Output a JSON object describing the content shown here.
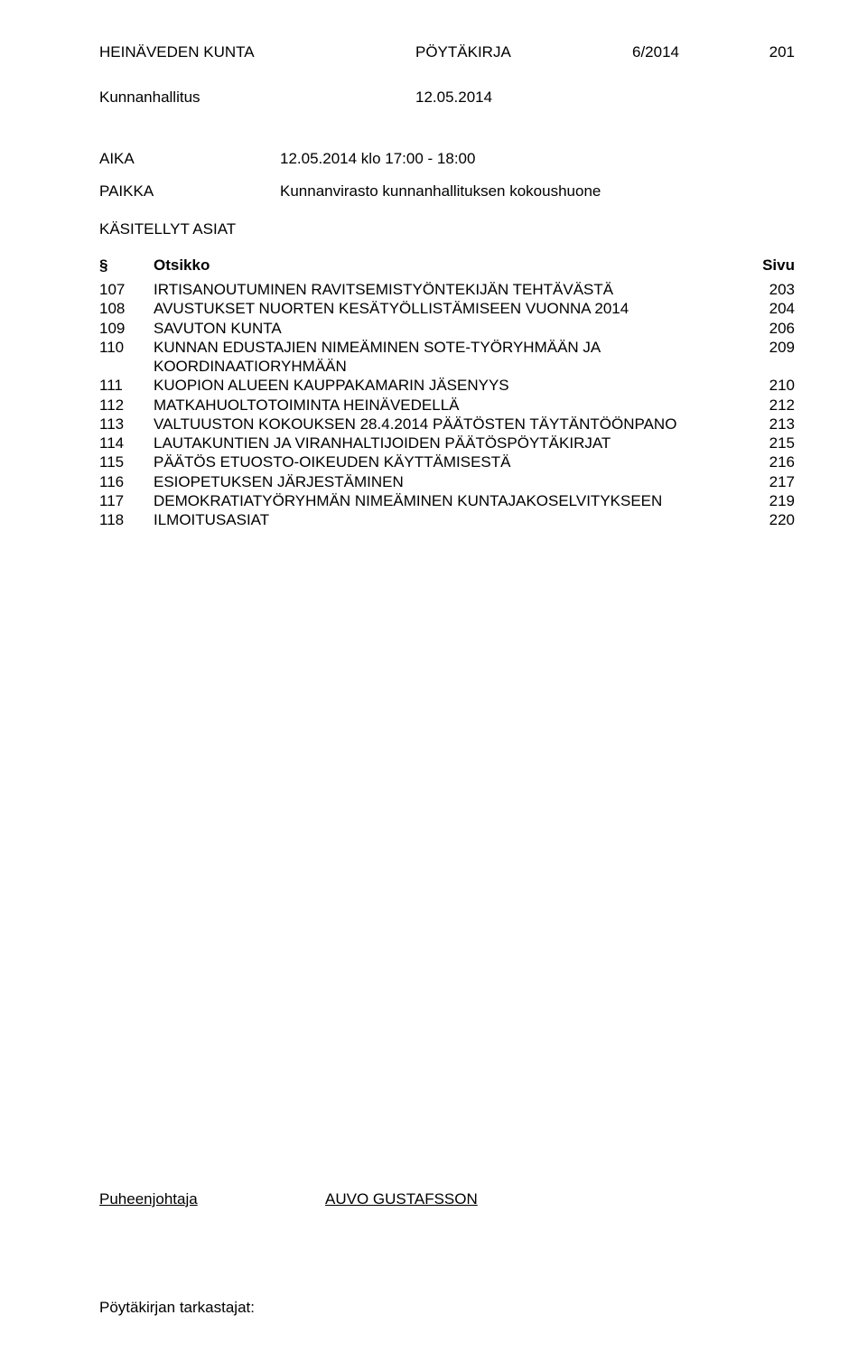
{
  "header": {
    "org": "HEINÄVEDEN KUNTA",
    "doc_type": "PÖYTÄKIRJA",
    "doc_num": "6/2014",
    "page_num": "201"
  },
  "subheader": {
    "body": "Kunnanhallitus",
    "date": "12.05.2014"
  },
  "meta": {
    "aika_label": "AIKA",
    "aika_value": "12.05.2014 klo 17:00 - 18:00",
    "paikka_label": "PAIKKA",
    "paikka_value": "Kunnanvirasto kunnanhallituksen kokoushuone"
  },
  "section_title": "KÄSITELLYT ASIAT",
  "table": {
    "head_sym": "§",
    "head_title": "Otsikko",
    "head_page": "Sivu",
    "rows": [
      {
        "num": "107",
        "title": "IRTISANOUTUMINEN RAVITSEMISTYÖNTEKIJÄN TEHTÄVÄSTÄ",
        "page": "203"
      },
      {
        "num": "108",
        "title": "AVUSTUKSET NUORTEN KESÄTYÖLLISTÄMISEEN VUONNA 2014",
        "page": "204"
      },
      {
        "num": "109",
        "title": "SAVUTON KUNTA",
        "page": "206"
      },
      {
        "num": "110",
        "title": "KUNNAN EDUSTAJIEN NIMEÄMINEN SOTE-TYÖRYHMÄÄN JA KOORDINAATIORYHMÄÄN",
        "page": "209"
      },
      {
        "num": "111",
        "title": "KUOPION ALUEEN KAUPPAKAMARIN JÄSENYYS",
        "page": "210"
      },
      {
        "num": "112",
        "title": "MATKAHUOLTOTOIMINTA HEINÄVEDELLÄ",
        "page": "212"
      },
      {
        "num": "113",
        "title": "VALTUUSTON KOKOUKSEN 28.4.2014 PÄÄTÖSTEN TÄYTÄNTÖÖNPANO",
        "page": "213"
      },
      {
        "num": "114",
        "title": "LAUTAKUNTIEN JA VIRANHALTIJOIDEN PÄÄTÖSPÖYTÄKIRJAT",
        "page": "215"
      },
      {
        "num": "115",
        "title": "PÄÄTÖS ETUOSTO-OIKEUDEN KÄYTTÄMISESTÄ",
        "page": "216"
      },
      {
        "num": "116",
        "title": "ESIOPETUKSEN JÄRJESTÄMINEN",
        "page": "217"
      },
      {
        "num": "117",
        "title": "DEMOKRATIATYÖRYHMÄN NIMEÄMINEN KUNTAJAKOSELVITYKSEEN",
        "page": "219"
      },
      {
        "num": "118",
        "title": "ILMOITUSASIAT",
        "page": "220"
      }
    ]
  },
  "signature": {
    "label": "Puheenjohtaja",
    "name": "AUVO GUSTAFSSON"
  },
  "footer": "Pöytäkirjan tarkastajat:"
}
